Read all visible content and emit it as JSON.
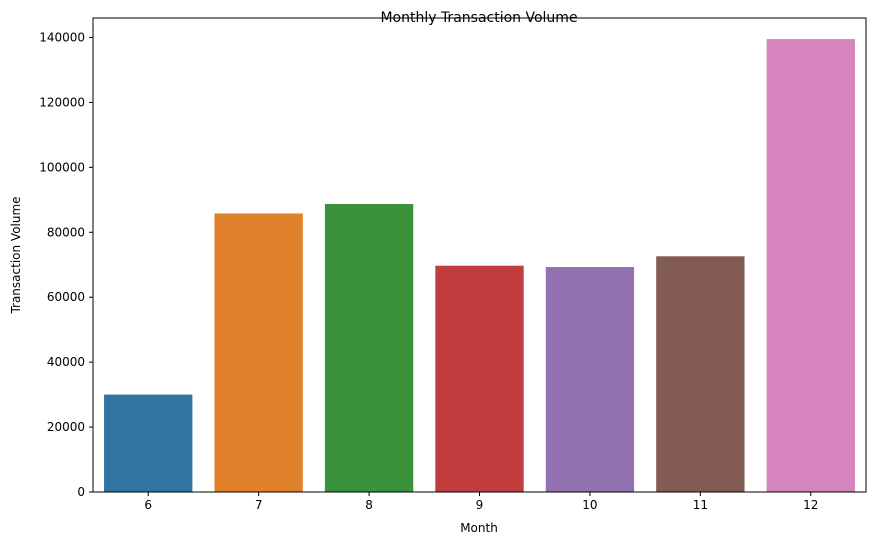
{
  "chart_data": {
    "type": "bar",
    "title": "Monthly Transaction Volume",
    "xlabel": "Month",
    "ylabel": "Transaction Volume",
    "categories": [
      "6",
      "7",
      "8",
      "9",
      "10",
      "11",
      "12"
    ],
    "values": [
      30000,
      85800,
      88700,
      69700,
      69300,
      72600,
      139500
    ],
    "colors": [
      "#3274a1",
      "#e1812c",
      "#3a923a",
      "#c03d3e",
      "#9372b2",
      "#845b53",
      "#d684bd"
    ],
    "ylim": [
      0,
      146000
    ],
    "yticks": [
      0,
      20000,
      40000,
      60000,
      80000,
      100000,
      120000,
      140000
    ],
    "ytick_labels": [
      "0",
      "20000",
      "40000",
      "60000",
      "80000",
      "100000",
      "120000",
      "140000"
    ],
    "grid": false,
    "legend": "none"
  }
}
